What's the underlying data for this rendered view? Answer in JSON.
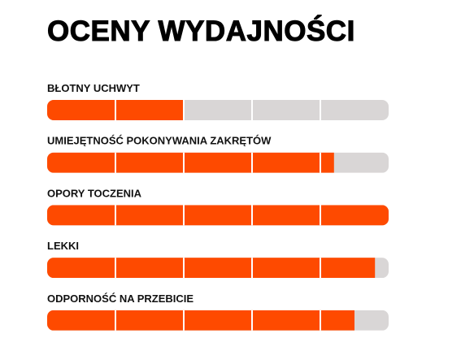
{
  "chart_data": {
    "type": "bar",
    "title": "OCENY WYDAJNOŚCI",
    "categories": [
      "BŁOTNY UCHWYT",
      "UMIEJĘTNOŚĆ POKONYWANIA ZAKRĘTÓW",
      "OPORY TOCZENIA",
      "LEKKI",
      "ODPORNOŚĆ NA PRZEBICIE"
    ],
    "values": [
      2,
      4.2,
      5,
      4.8,
      4.5
    ],
    "color": "#fe4a00",
    "track_color": "#d9d6d6",
    "xlim": [
      0,
      5
    ],
    "xticks": [
      1,
      2,
      3,
      4
    ],
    "grid": true
  }
}
